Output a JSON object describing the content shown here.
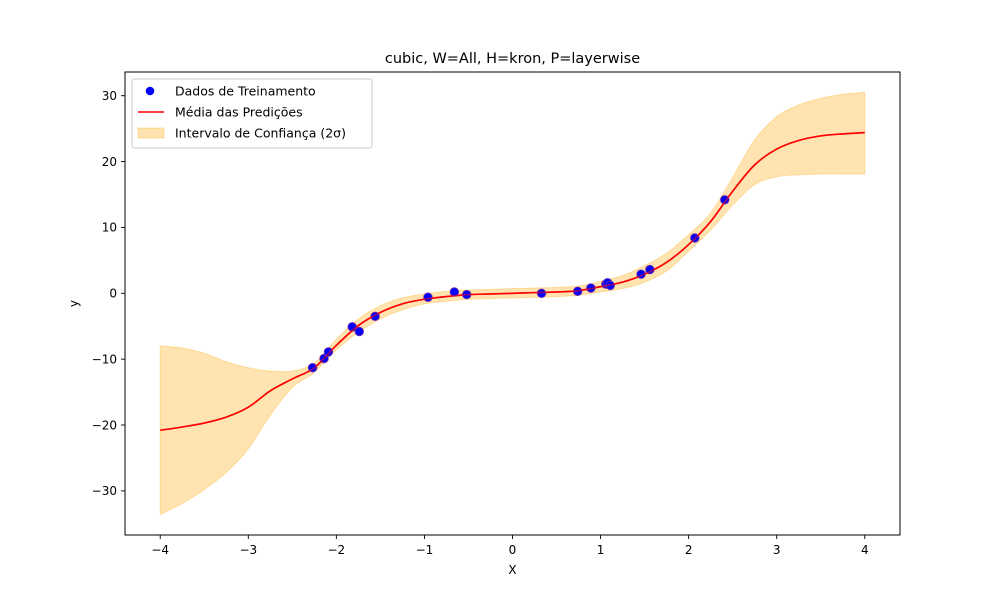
{
  "chart_data": {
    "type": "line",
    "title": "cubic, W=All, H=kron, P=layerwise",
    "xlabel": "X",
    "ylabel": "y",
    "xlim": [
      -4.4,
      4.4
    ],
    "ylim": [
      -36.7,
      33.6
    ],
    "xticks": [
      -4,
      -3,
      -2,
      -1,
      0,
      1,
      2,
      3,
      4
    ],
    "xtick_labels": [
      "−4",
      "−3",
      "−2",
      "−1",
      "0",
      "1",
      "2",
      "3",
      "4"
    ],
    "yticks": [
      -30,
      -20,
      -10,
      0,
      10,
      20,
      30
    ],
    "ytick_labels": [
      "−30",
      "−20",
      "−10",
      "0",
      "10",
      "20",
      "30"
    ],
    "grid": false,
    "legend_position": "top-left",
    "colors": {
      "points_fill": "#0000ff",
      "points_edge": "#7a2ea0",
      "mean_line": "#ff0000",
      "band_fill": "#ffa500"
    },
    "series": [
      {
        "name": "Dados de Treinamento",
        "kind": "scatter",
        "x": [
          -2.27,
          -2.14,
          -2.09,
          -1.82,
          -1.74,
          -1.56,
          -0.96,
          -0.66,
          -0.52,
          0.33,
          0.74,
          0.89,
          1.06,
          1.08,
          1.11,
          1.46,
          1.56,
          2.07,
          2.41
        ],
        "y": [
          -11.3,
          -9.9,
          -8.9,
          -5.1,
          -5.8,
          -3.5,
          -0.6,
          0.2,
          -0.2,
          0.0,
          0.3,
          0.8,
          1.4,
          1.6,
          1.2,
          2.9,
          3.6,
          8.4,
          14.2
        ]
      },
      {
        "name": "Média das Predições",
        "kind": "line",
        "x": [
          -4.0,
          -3.75,
          -3.5,
          -3.25,
          -3.0,
          -2.75,
          -2.5,
          -2.25,
          -2.0,
          -1.75,
          -1.5,
          -1.25,
          -1.0,
          -0.75,
          -0.5,
          -0.25,
          0.0,
          0.25,
          0.5,
          0.75,
          1.0,
          1.25,
          1.5,
          1.75,
          2.0,
          2.25,
          2.5,
          2.75,
          3.0,
          3.25,
          3.5,
          3.75,
          4.0
        ],
        "y": [
          -20.8,
          -20.3,
          -19.7,
          -18.8,
          -17.3,
          -14.8,
          -13.0,
          -11.3,
          -7.9,
          -4.9,
          -2.9,
          -1.6,
          -0.9,
          -0.5,
          -0.2,
          -0.1,
          0.0,
          0.1,
          0.2,
          0.4,
          1.0,
          1.7,
          2.9,
          4.7,
          7.4,
          10.9,
          15.5,
          19.5,
          21.9,
          23.2,
          23.9,
          24.2,
          24.4
        ]
      },
      {
        "name": "Intervalo de Confiança (2σ)",
        "kind": "band",
        "x": [
          -4.0,
          -3.75,
          -3.5,
          -3.25,
          -3.0,
          -2.75,
          -2.5,
          -2.25,
          -2.0,
          -1.75,
          -1.5,
          -1.25,
          -1.0,
          -0.75,
          -0.5,
          -0.25,
          0.0,
          0.25,
          0.5,
          0.75,
          1.0,
          1.25,
          1.5,
          1.75,
          2.0,
          2.25,
          2.5,
          2.75,
          3.0,
          3.25,
          3.5,
          3.75,
          4.0
        ],
        "lower": [
          -33.6,
          -31.9,
          -29.8,
          -27.2,
          -23.6,
          -18.5,
          -14.3,
          -12.0,
          -8.6,
          -5.9,
          -3.9,
          -2.5,
          -1.6,
          -1.2,
          -0.9,
          -0.8,
          -0.7,
          -0.6,
          -0.5,
          -0.3,
          0.2,
          0.7,
          1.7,
          3.4,
          6.4,
          9.6,
          13.4,
          16.5,
          17.7,
          18.0,
          18.1,
          18.1,
          18.1
        ],
        "upper": [
          -8.0,
          -8.3,
          -9.1,
          -10.4,
          -11.3,
          -11.8,
          -11.8,
          -10.6,
          -7.0,
          -3.9,
          -1.9,
          -0.7,
          -0.1,
          0.3,
          0.5,
          0.6,
          0.7,
          0.8,
          0.9,
          1.1,
          1.8,
          2.7,
          4.2,
          6.1,
          8.9,
          12.2,
          17.6,
          23.3,
          26.8,
          28.6,
          29.6,
          30.2,
          30.5
        ]
      }
    ]
  }
}
